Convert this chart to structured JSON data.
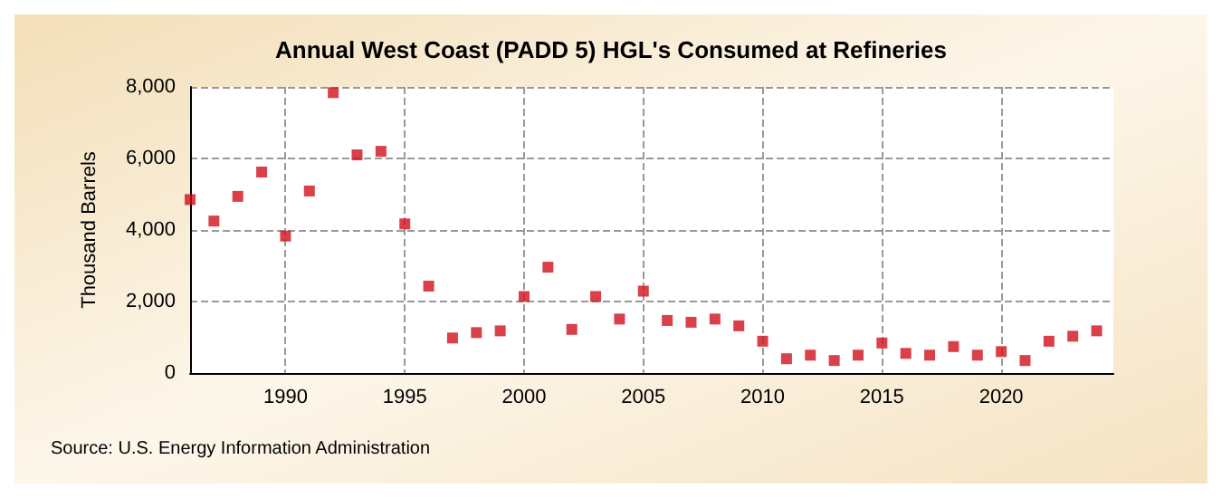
{
  "chart_data": {
    "type": "scatter",
    "title": "Annual West Coast (PADD 5) HGL's Consumed at Refineries",
    "ylabel": "Thousand Barrels",
    "annotations": [
      "Source: U.S. Energy Information Administration"
    ],
    "x": [
      1986,
      1987,
      1988,
      1989,
      1990,
      1991,
      1992,
      1993,
      1994,
      1995,
      1996,
      1997,
      1998,
      1999,
      2000,
      2001,
      2002,
      2003,
      2004,
      2005,
      2006,
      2007,
      2008,
      2009,
      2010,
      2011,
      2012,
      2013,
      2014,
      2015,
      2016,
      2017,
      2018,
      2019,
      2020,
      2021,
      2022,
      2023,
      2024
    ],
    "series": [
      {
        "color": "#d0101c",
        "values": [
          4850,
          4250,
          4940,
          5620,
          3830,
          5090,
          7840,
          6100,
          6200,
          4170,
          2430,
          980,
          1130,
          1180,
          2140,
          2960,
          1220,
          2140,
          1510,
          2290,
          1470,
          1420,
          1510,
          1320,
          890,
          400,
          500,
          350,
          500,
          840,
          550,
          500,
          740,
          500,
          600,
          350,
          890,
          1030,
          1180
        ]
      }
    ],
    "xlim": [
      1986,
      2024.7
    ],
    "xticks": [
      1990,
      1995,
      2000,
      2005,
      2010,
      2015,
      2020
    ],
    "ylim": [
      0,
      8000
    ],
    "yticks": [
      0,
      {
        "value": 2000,
        "label": "2,000"
      },
      {
        "value": 4000,
        "label": "4,000"
      },
      {
        "value": 6000,
        "label": "6,000"
      },
      {
        "value": 8000,
        "label": "8,000"
      }
    ],
    "grid": true,
    "marker": "square"
  }
}
